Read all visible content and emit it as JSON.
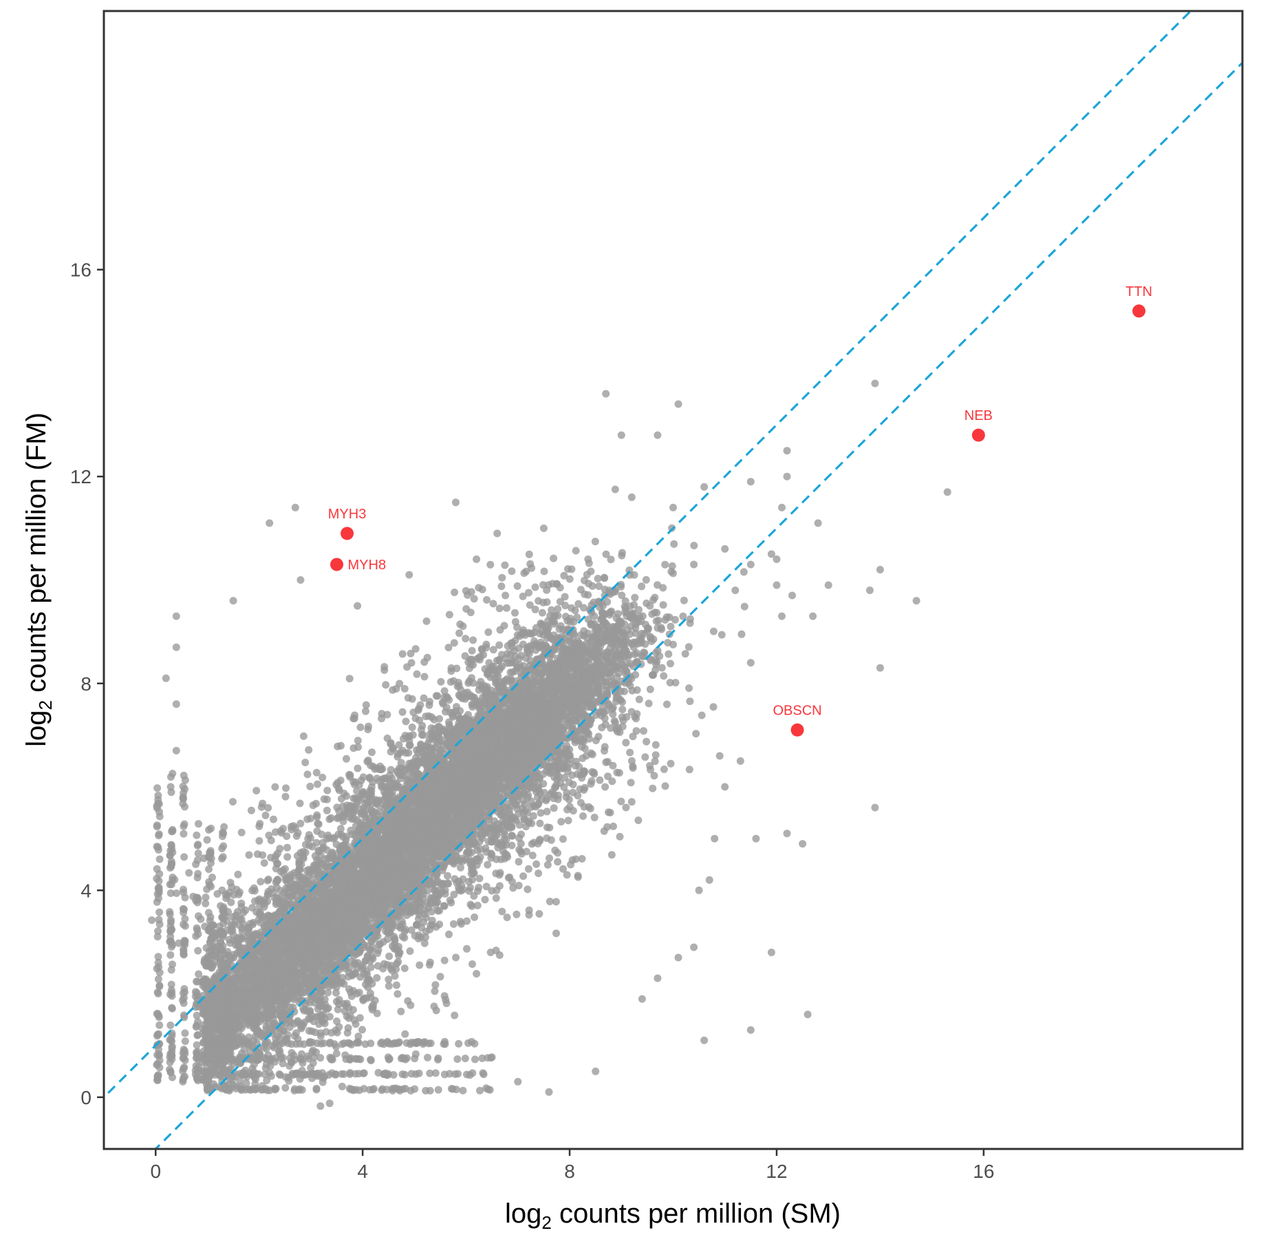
{
  "chart_data": {
    "type": "scatter",
    "title": "",
    "xlabel": {
      "prefix": "log",
      "sub": "2",
      "suffix": " counts per million (SM)"
    },
    "ylabel": {
      "prefix": "log",
      "sub": "2",
      "suffix": " counts per million (FM)"
    },
    "xlim": [
      -1,
      21
    ],
    "ylim": [
      -1,
      21
    ],
    "xticks": [
      0,
      4,
      8,
      12,
      16
    ],
    "yticks": [
      0,
      4,
      8,
      12,
      16
    ],
    "grid": false,
    "colors": {
      "points": "#999999",
      "highlight": "#f8373c",
      "lines": "#1ea5d8",
      "axis": "#333333"
    },
    "reference_lines": [
      {
        "intercept": 1,
        "slope": 1
      },
      {
        "intercept": -1,
        "slope": 1
      }
    ],
    "bulk_cloud": {
      "description_of_density": "dense diagonal cloud",
      "center_line": "y = x",
      "x_range": [
        0,
        9
      ],
      "y_range": [
        0,
        9.5
      ]
    },
    "outliers": [
      {
        "x": 2.2,
        "y": 11.1
      },
      {
        "x": 2.7,
        "y": 11.4
      },
      {
        "x": 2.8,
        "y": 10.0
      },
      {
        "x": 1.5,
        "y": 9.6
      },
      {
        "x": 0.4,
        "y": 9.3
      },
      {
        "x": 0.4,
        "y": 8.7
      },
      {
        "x": 0.2,
        "y": 8.1
      },
      {
        "x": 0.4,
        "y": 7.6
      },
      {
        "x": 0.4,
        "y": 6.7
      },
      {
        "x": 3.9,
        "y": 9.5
      },
      {
        "x": 4.9,
        "y": 10.1
      },
      {
        "x": 5.8,
        "y": 11.5
      },
      {
        "x": 6.2,
        "y": 10.4
      },
      {
        "x": 6.6,
        "y": 10.9
      },
      {
        "x": 7.5,
        "y": 11.0
      },
      {
        "x": 8.7,
        "y": 13.6
      },
      {
        "x": 9.0,
        "y": 12.8
      },
      {
        "x": 9.7,
        "y": 12.8
      },
      {
        "x": 10.1,
        "y": 13.4
      },
      {
        "x": 9.2,
        "y": 11.6
      },
      {
        "x": 10.6,
        "y": 11.8
      },
      {
        "x": 11.5,
        "y": 11.9
      },
      {
        "x": 12.2,
        "y": 12.5
      },
      {
        "x": 12.2,
        "y": 12.0
      },
      {
        "x": 12.1,
        "y": 11.4
      },
      {
        "x": 12.8,
        "y": 11.1
      },
      {
        "x": 10.0,
        "y": 11.4
      },
      {
        "x": 10.4,
        "y": 10.3
      },
      {
        "x": 11.0,
        "y": 10.6
      },
      {
        "x": 11.5,
        "y": 10.3
      },
      {
        "x": 11.9,
        "y": 10.5
      },
      {
        "x": 12.0,
        "y": 10.4
      },
      {
        "x": 12.0,
        "y": 9.9
      },
      {
        "x": 12.3,
        "y": 9.7
      },
      {
        "x": 13.0,
        "y": 9.9
      },
      {
        "x": 12.1,
        "y": 9.3
      },
      {
        "x": 12.7,
        "y": 9.3
      },
      {
        "x": 11.2,
        "y": 9.8
      },
      {
        "x": 11.5,
        "y": 8.4
      },
      {
        "x": 13.9,
        "y": 13.8
      },
      {
        "x": 15.3,
        "y": 11.7
      },
      {
        "x": 14.0,
        "y": 10.2
      },
      {
        "x": 13.8,
        "y": 9.8
      },
      {
        "x": 14.7,
        "y": 9.6
      },
      {
        "x": 14.0,
        "y": 8.3
      },
      {
        "x": 13.9,
        "y": 5.6
      },
      {
        "x": 12.2,
        "y": 5.1
      },
      {
        "x": 12.5,
        "y": 4.9
      },
      {
        "x": 11.9,
        "y": 2.8
      },
      {
        "x": 11.5,
        "y": 1.3
      },
      {
        "x": 10.6,
        "y": 1.1
      },
      {
        "x": 12.6,
        "y": 1.6
      },
      {
        "x": 10.9,
        "y": 6.6
      },
      {
        "x": 11.3,
        "y": 6.5
      },
      {
        "x": 11.0,
        "y": 6.0
      },
      {
        "x": 11.6,
        "y": 5.0
      },
      {
        "x": 10.8,
        "y": 5.0
      },
      {
        "x": 10.7,
        "y": 4.2
      },
      {
        "x": 10.5,
        "y": 4.0
      },
      {
        "x": 10.4,
        "y": 2.9
      },
      {
        "x": 10.1,
        "y": 2.7
      },
      {
        "x": 9.7,
        "y": 2.3
      },
      {
        "x": 9.4,
        "y": 1.9
      },
      {
        "x": 8.5,
        "y": 0.5
      },
      {
        "x": 7.6,
        "y": 0.1
      },
      {
        "x": 7.0,
        "y": 0.3
      }
    ],
    "highlighted_genes": [
      {
        "name": "MYH3",
        "x": 3.7,
        "y": 10.9,
        "label_pos": "top"
      },
      {
        "name": "MYH8",
        "x": 3.5,
        "y": 10.3,
        "label_pos": "right"
      },
      {
        "name": "TTN",
        "x": 19.0,
        "y": 15.2,
        "label_pos": "top"
      },
      {
        "name": "NEB",
        "x": 15.9,
        "y": 12.8,
        "label_pos": "top"
      },
      {
        "name": "OBSCN",
        "x": 12.4,
        "y": 7.1,
        "label_pos": "top"
      }
    ]
  }
}
